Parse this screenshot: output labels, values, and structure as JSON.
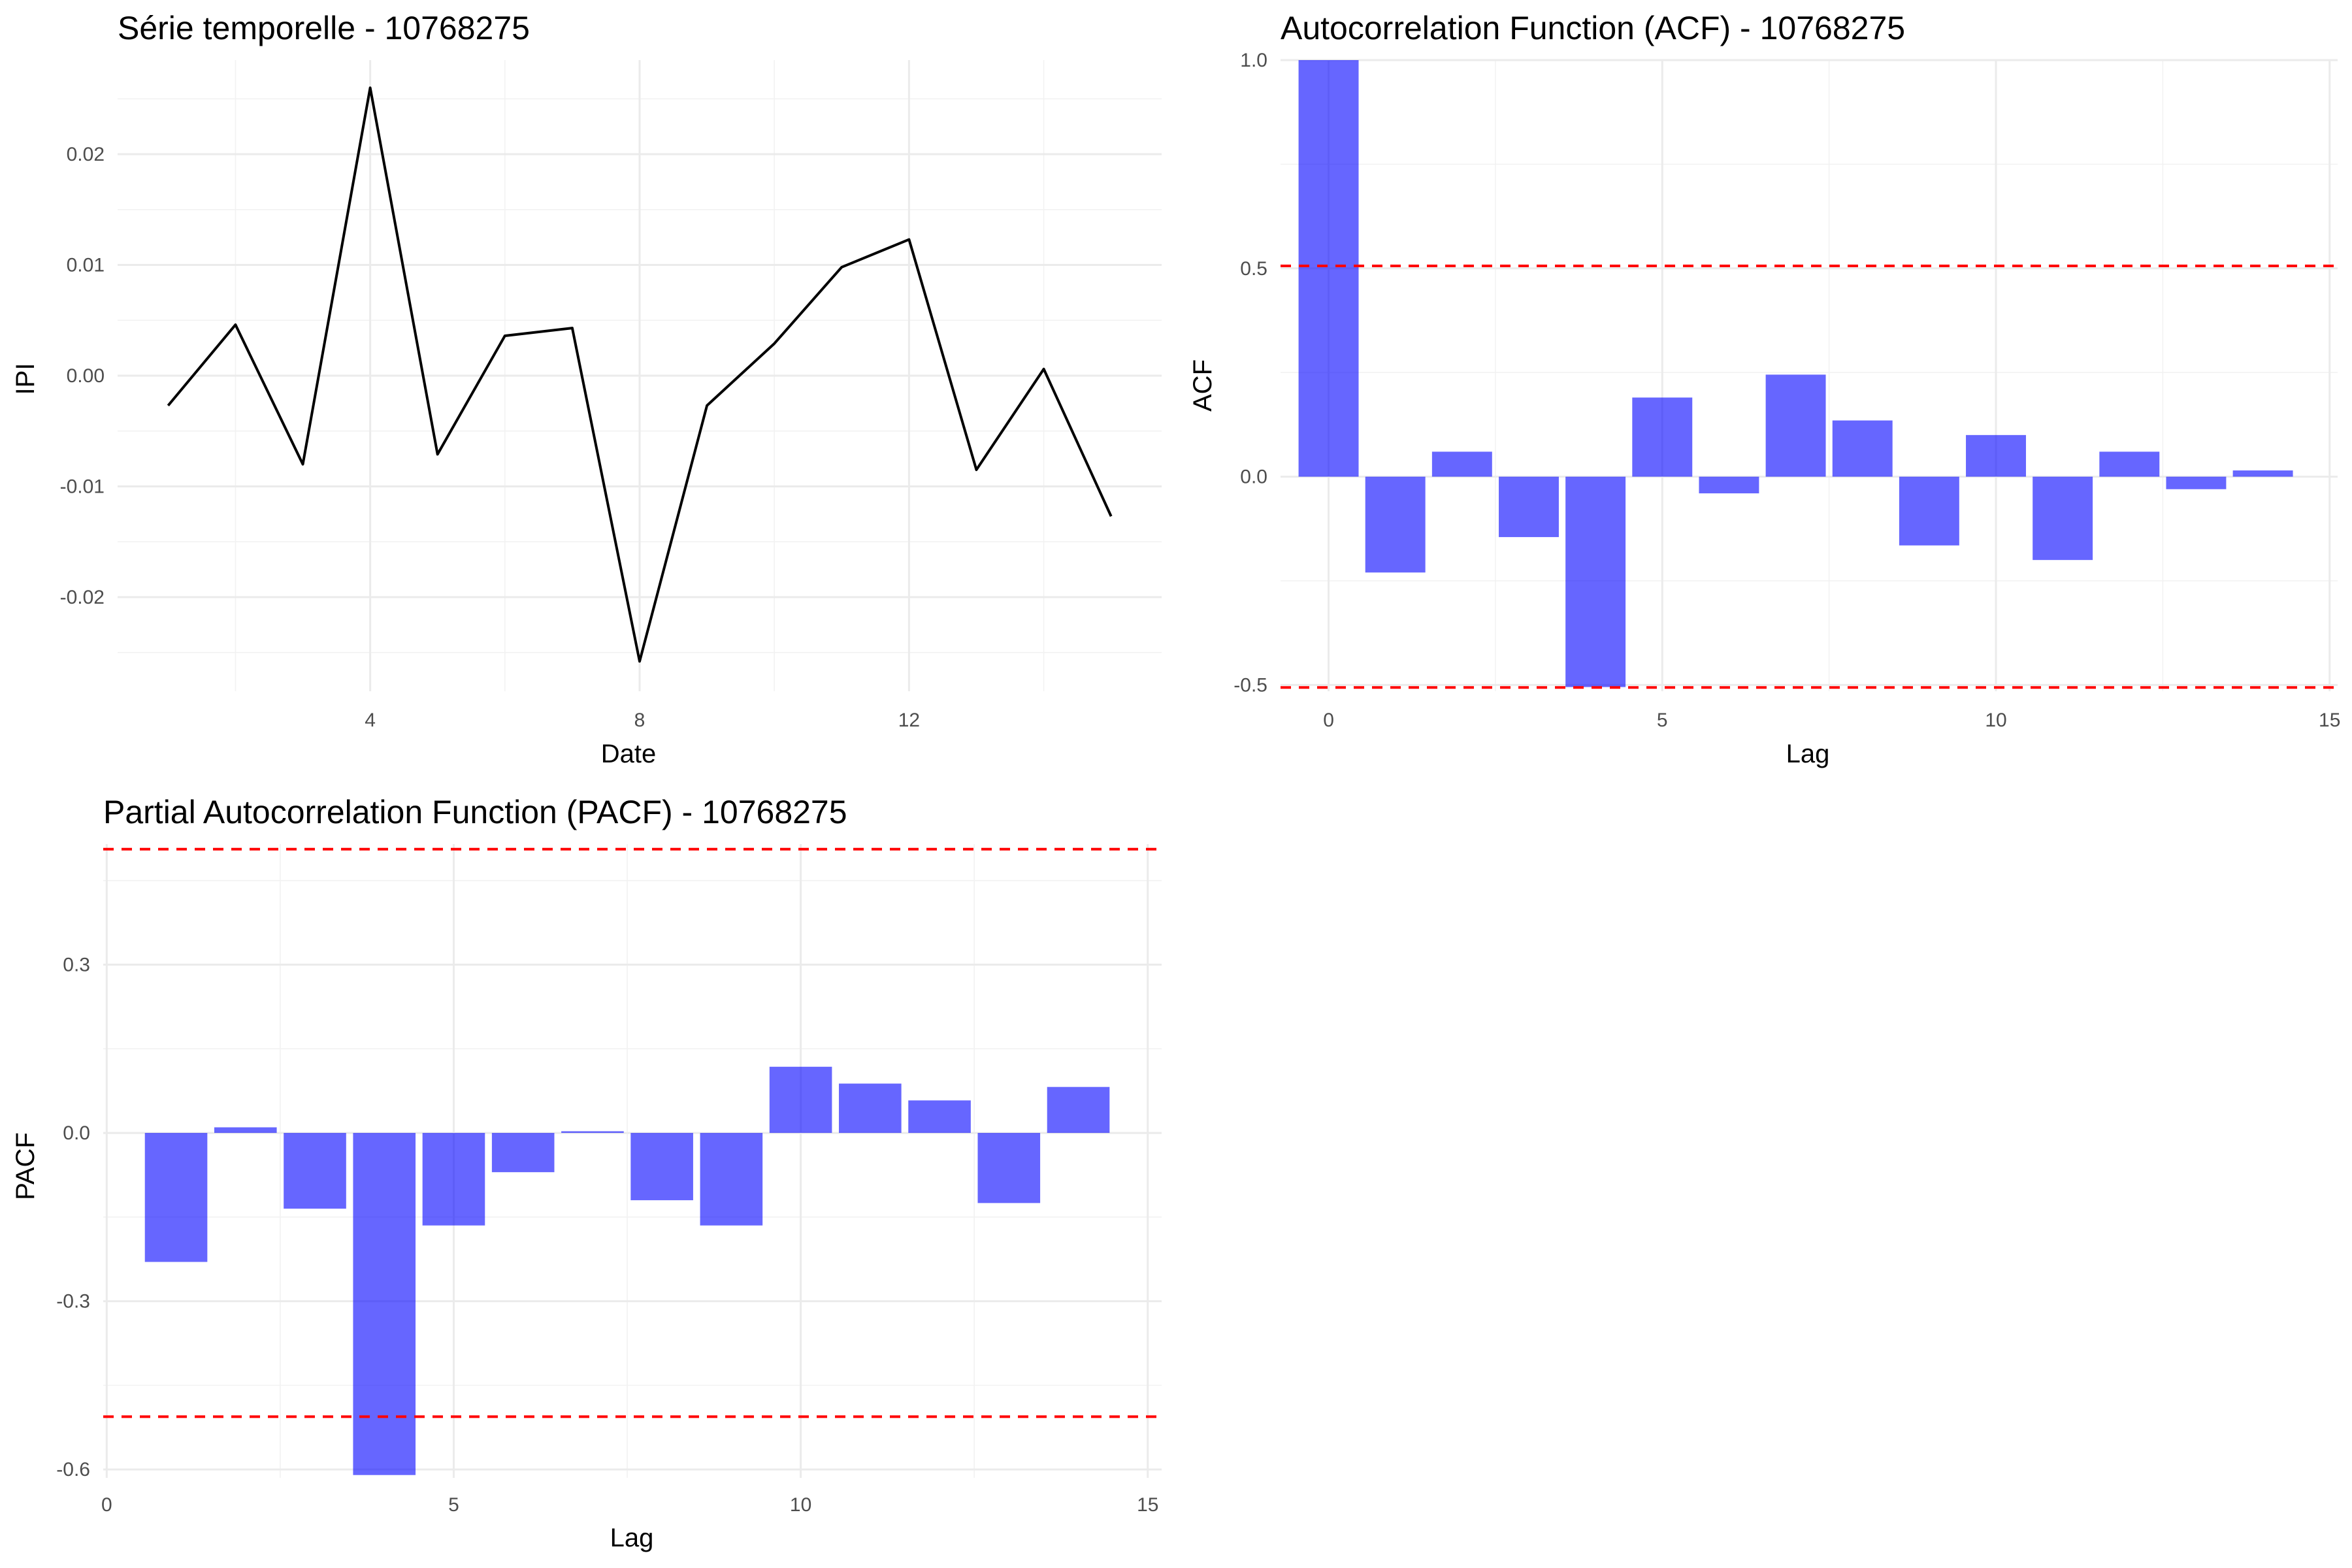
{
  "chart_data": [
    {
      "id": "ts",
      "type": "line",
      "title": "Série temporelle - 10768275",
      "xlabel": "Date",
      "ylabel": "IPI",
      "xlim": [
        0.25,
        15.75
      ],
      "ylim": [
        -0.0285,
        0.0285
      ],
      "x_ticks": [
        4,
        8,
        12
      ],
      "x_tick_labels": [
        "4",
        "8",
        "12"
      ],
      "y_ticks": [
        -0.02,
        -0.01,
        0.0,
        0.01,
        0.02
      ],
      "y_tick_labels": [
        "-0.02",
        "-0.01",
        "0.00",
        "0.01",
        "0.02"
      ],
      "grid": true,
      "line_color": "#000000",
      "x": [
        1,
        2,
        3,
        4,
        5,
        6,
        7,
        8,
        9,
        10,
        11,
        12,
        13,
        14,
        15
      ],
      "y": [
        -0.0027,
        0.0046,
        -0.008,
        0.026,
        -0.0071,
        0.0036,
        0.0043,
        -0.0258,
        -0.0027,
        0.0029,
        0.0098,
        0.0123,
        -0.0085,
        0.0006,
        -0.0127
      ]
    },
    {
      "id": "acf",
      "type": "bar",
      "title": "Autocorrelation Function (ACF) - 10768275",
      "xlabel": "Lag",
      "ylabel": "ACF",
      "xlim": [
        -0.72,
        15.12
      ],
      "ylim": [
        -0.515,
        1.0
      ],
      "x_ticks": [
        0,
        5,
        10,
        15
      ],
      "x_tick_labels": [
        "0",
        "5",
        "10",
        "15"
      ],
      "y_ticks": [
        -0.5,
        0.0,
        0.5,
        1.0
      ],
      "y_tick_labels": [
        "-0.5",
        "0.0",
        "0.5",
        "1.0"
      ],
      "grid": true,
      "bar_color": "#0000ff",
      "bar_opacity": 0.6,
      "threshold_color": "#ff0000",
      "thresholds": [
        0.506,
        -0.506
      ],
      "categories": [
        0,
        1,
        2,
        3,
        4,
        5,
        6,
        7,
        8,
        9,
        10,
        11,
        12,
        13,
        14
      ],
      "values": [
        1.0,
        -0.23,
        0.06,
        -0.145,
        -0.505,
        0.19,
        -0.04,
        0.245,
        0.135,
        -0.165,
        0.1,
        -0.2,
        0.06,
        -0.03,
        0.015
      ]
    },
    {
      "id": "pacf",
      "type": "bar",
      "title": "Partial Autocorrelation Function (PACF) - 10768275",
      "xlabel": "Lag",
      "ylabel": "PACF",
      "xlim": [
        -0.05,
        15.2
      ],
      "ylim": [
        -0.615,
        0.515
      ],
      "x_ticks": [
        0,
        5,
        10,
        15
      ],
      "x_tick_labels": [
        "0",
        "5",
        "10",
        "15"
      ],
      "y_ticks": [
        -0.6,
        -0.3,
        0.0,
        0.3
      ],
      "y_tick_labels": [
        "-0.6",
        "-0.3",
        "0.0",
        "0.3"
      ],
      "grid": true,
      "bar_color": "#0000ff",
      "bar_opacity": 0.6,
      "threshold_color": "#ff0000",
      "thresholds": [
        0.506,
        -0.506
      ],
      "categories": [
        1,
        2,
        3,
        4,
        5,
        6,
        7,
        8,
        9,
        10,
        11,
        12,
        13,
        14
      ],
      "values": [
        -0.23,
        0.01,
        -0.135,
        -0.61,
        -0.165,
        -0.07,
        0.003,
        -0.12,
        -0.165,
        0.118,
        0.088,
        0.058,
        -0.125,
        0.082
      ]
    }
  ]
}
